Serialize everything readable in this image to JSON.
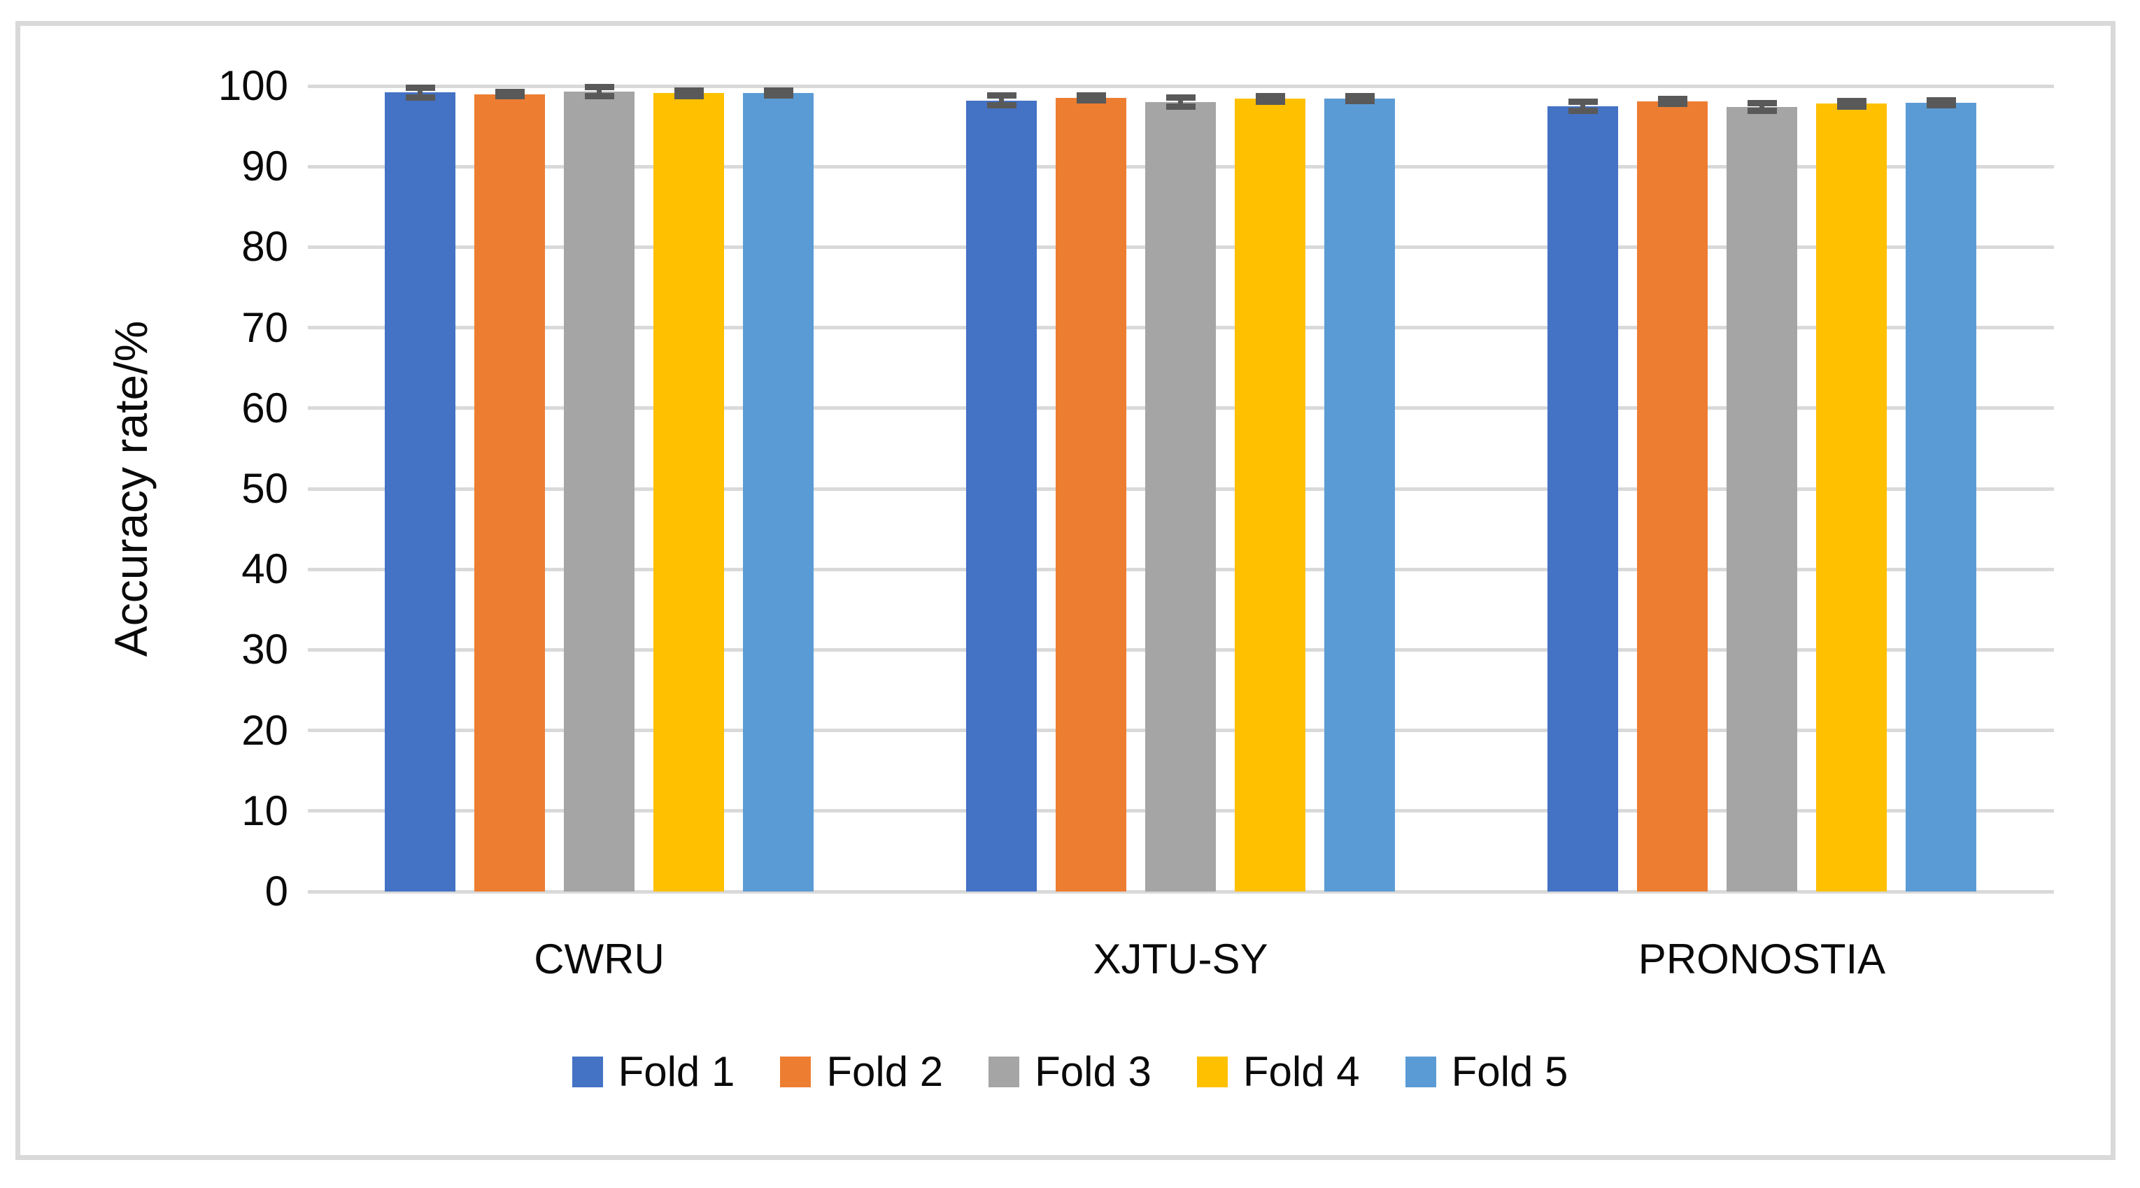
{
  "chart_data": {
    "type": "bar",
    "title": "",
    "ylabel": "Accuracy rate/%",
    "xlabel": "",
    "categories": [
      "CWRU",
      "XJTU-SY",
      "PRONOSTIA"
    ],
    "series": [
      {
        "name": "Fold 1",
        "color": "#4472C4",
        "values": [
          99.2,
          98.2,
          97.5
        ],
        "errors": [
          0.6,
          0.6,
          0.55
        ]
      },
      {
        "name": "Fold 2",
        "color": "#ED7D31",
        "values": [
          99.0,
          98.5,
          98.1
        ],
        "errors": [
          0.25,
          0.3,
          0.3
        ]
      },
      {
        "name": "Fold 3",
        "color": "#A5A5A5",
        "values": [
          99.3,
          98.0,
          97.4
        ],
        "errors": [
          0.6,
          0.55,
          0.5
        ]
      },
      {
        "name": "Fold 4",
        "color": "#FFC000",
        "values": [
          99.1,
          98.4,
          97.8
        ],
        "errors": [
          0.35,
          0.35,
          0.35
        ]
      },
      {
        "name": "Fold 5",
        "color": "#5B9BD5",
        "values": [
          99.1,
          98.4,
          97.9
        ],
        "errors": [
          0.3,
          0.3,
          0.3
        ]
      }
    ],
    "ylim": [
      0,
      100
    ],
    "yticks": [
      0,
      10,
      20,
      30,
      40,
      50,
      60,
      70,
      80,
      90,
      100
    ],
    "grid": true,
    "legend_position": "bottom",
    "error_bar_color": "#595959",
    "gridline_color": "#D9D9D9",
    "frame_border_color": "#D9D9D9"
  }
}
